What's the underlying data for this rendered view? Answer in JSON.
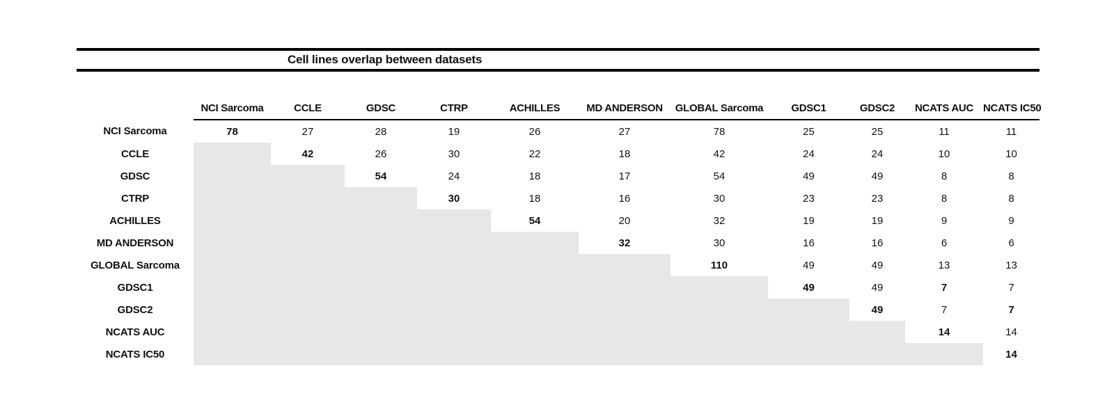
{
  "colors": {
    "shaded_cell": "#e7e7e7",
    "rule": "#000000",
    "text": "#111111"
  },
  "chart_data": {
    "type": "table",
    "title": "Cell lines overlap between datasets",
    "columns": [
      "NCI Sarcoma",
      "CCLE",
      "GDSC",
      "CTRP",
      "ACHILLES",
      "MD ANDERSON",
      "GLOBAL Sarcoma",
      "GDSC1",
      "GDSC2",
      "NCATS AUC",
      "NCATS IC50"
    ],
    "rows": [
      {
        "label": "NCI Sarcoma",
        "values": [
          78,
          27,
          28,
          19,
          26,
          27,
          78,
          25,
          25,
          11,
          11
        ]
      },
      {
        "label": "CCLE",
        "values": [
          null,
          42,
          26,
          30,
          22,
          18,
          42,
          24,
          24,
          10,
          10
        ]
      },
      {
        "label": "GDSC",
        "values": [
          null,
          null,
          54,
          24,
          18,
          17,
          54,
          49,
          49,
          8,
          8
        ]
      },
      {
        "label": "CTRP",
        "values": [
          null,
          null,
          null,
          30,
          18,
          16,
          30,
          23,
          23,
          8,
          8
        ]
      },
      {
        "label": "ACHILLES",
        "values": [
          null,
          null,
          null,
          null,
          54,
          20,
          32,
          19,
          19,
          9,
          9
        ]
      },
      {
        "label": "MD ANDERSON",
        "values": [
          null,
          null,
          null,
          null,
          null,
          32,
          30,
          16,
          16,
          6,
          6
        ]
      },
      {
        "label": "GLOBAL Sarcoma",
        "values": [
          null,
          null,
          null,
          null,
          null,
          null,
          110,
          49,
          49,
          13,
          13
        ]
      },
      {
        "label": "GDSC1",
        "values": [
          null,
          null,
          null,
          null,
          null,
          null,
          null,
          49,
          49,
          7,
          7
        ]
      },
      {
        "label": "GDSC2",
        "values": [
          null,
          null,
          null,
          null,
          null,
          null,
          null,
          null,
          49,
          7,
          7
        ]
      },
      {
        "label": "NCATS AUC",
        "values": [
          null,
          null,
          null,
          null,
          null,
          null,
          null,
          null,
          null,
          14,
          14
        ]
      },
      {
        "label": "NCATS IC50",
        "values": [
          null,
          null,
          null,
          null,
          null,
          null,
          null,
          null,
          null,
          null,
          14
        ]
      }
    ],
    "bold_cells": [
      [
        0,
        0
      ],
      [
        1,
        1
      ],
      [
        2,
        2
      ],
      [
        3,
        3
      ],
      [
        4,
        4
      ],
      [
        5,
        5
      ],
      [
        6,
        6
      ],
      [
        7,
        7
      ],
      [
        8,
        8
      ],
      [
        9,
        9
      ],
      [
        10,
        10
      ],
      [
        7,
        9
      ],
      [
        8,
        10
      ]
    ],
    "shaded_region": "lower-triangle",
    "shaded_color": "#e7e7e7",
    "layout_hints": {
      "grid": "off",
      "top_double_rule": true,
      "header_underline_span": "data-columns-only"
    }
  }
}
